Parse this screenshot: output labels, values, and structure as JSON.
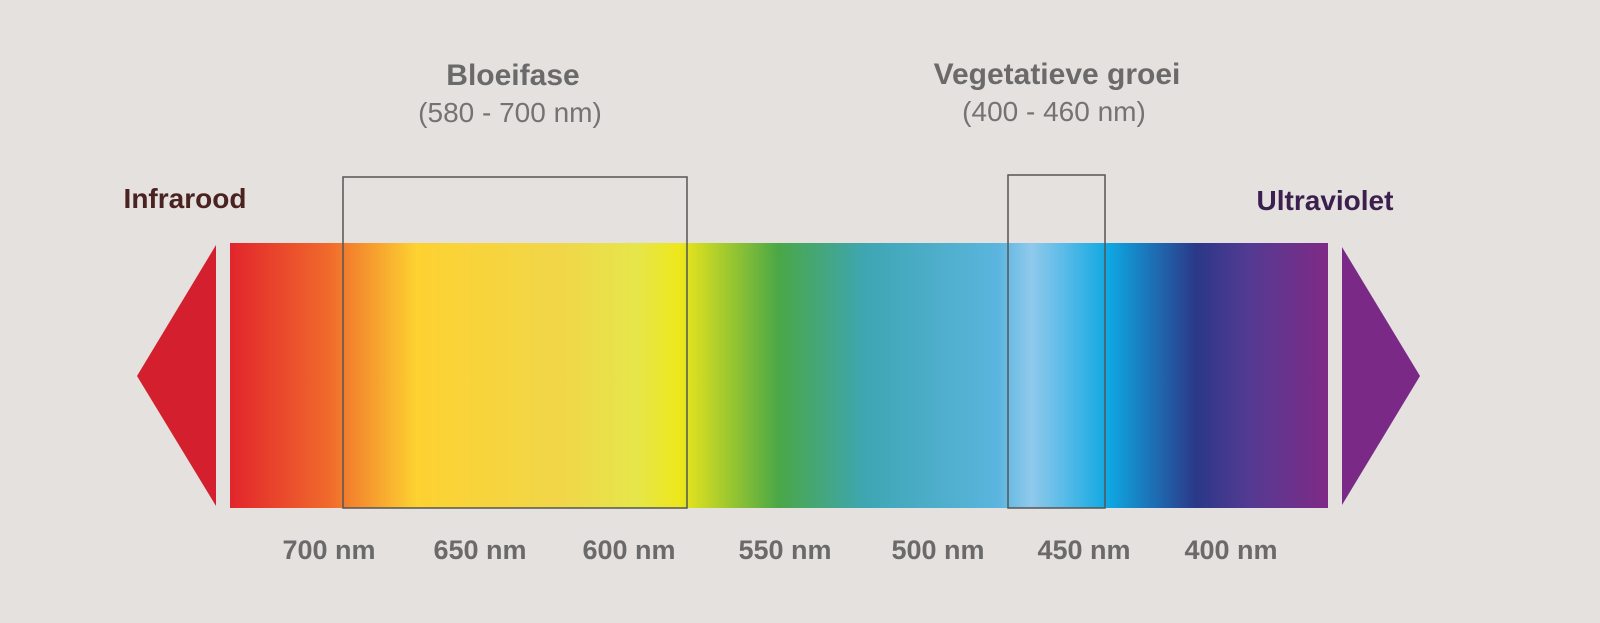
{
  "spectrum": {
    "flowering": {
      "title": "Bloeifase",
      "range": "(580 - 700 nm)"
    },
    "vegetative": {
      "title": "Vegetatieve groei",
      "range": "(400 - 460 nm)"
    },
    "left_label": "Infrarood",
    "right_label": "Ultraviolet",
    "wavelength_labels": [
      "700 nm",
      "650 nm",
      "600 nm",
      "550 nm",
      "500 nm",
      "450 nm",
      "400 nm"
    ]
  }
}
